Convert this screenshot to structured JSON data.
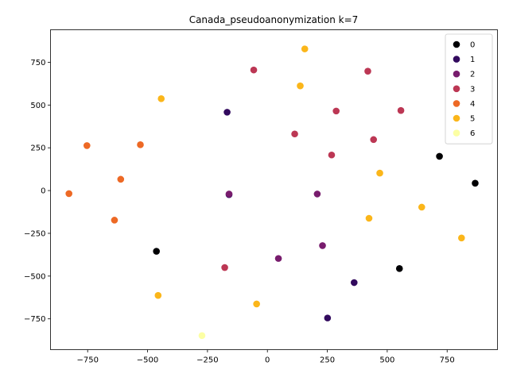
{
  "chart_data": {
    "type": "scatter",
    "title": "Canada_pseudoanonymization k=7",
    "xlabel": "",
    "ylabel": "",
    "xlim": [
      -905,
      960
    ],
    "ylim": [
      -930,
      940
    ],
    "xticks": [
      -750,
      -500,
      -250,
      0,
      250,
      500,
      750
    ],
    "yticks": [
      -750,
      -500,
      -250,
      0,
      250,
      500,
      750
    ],
    "grid": false,
    "legend_position": "top-right",
    "series": [
      {
        "name": "0",
        "color": "#000004",
        "points": [
          [
            718,
            200
          ],
          [
            867,
            43
          ],
          [
            -463,
            -355
          ],
          [
            551,
            -456
          ]
        ]
      },
      {
        "name": "1",
        "color": "#320a5e",
        "points": [
          [
            -168,
            458
          ],
          [
            -160,
            -24
          ],
          [
            362,
            -538
          ],
          [
            251,
            -745
          ]
        ]
      },
      {
        "name": "2",
        "color": "#781c6d",
        "points": [
          [
            208,
            -20
          ],
          [
            -160,
            -20
          ],
          [
            230,
            -322
          ],
          [
            46,
            -397
          ]
        ]
      },
      {
        "name": "3",
        "color": "#bc3754",
        "points": [
          [
            -57,
            705
          ],
          [
            419,
            698
          ],
          [
            287,
            465
          ],
          [
            557,
            468
          ],
          [
            114,
            331
          ],
          [
            443,
            298
          ],
          [
            268,
            208
          ],
          [
            -178,
            -450
          ]
        ]
      },
      {
        "name": "4",
        "color": "#ed6925",
        "points": [
          [
            -753,
            263
          ],
          [
            -530,
            268
          ],
          [
            -612,
            66
          ],
          [
            -828,
            -18
          ],
          [
            -638,
            -173
          ]
        ]
      },
      {
        "name": "5",
        "color": "#fbb61a",
        "points": [
          [
            156,
            828
          ],
          [
            -443,
            537
          ],
          [
            137,
            612
          ],
          [
            469,
            102
          ],
          [
            424,
            -162
          ],
          [
            644,
            -97
          ],
          [
            810,
            -277
          ],
          [
            -456,
            -613
          ],
          [
            -45,
            -663
          ]
        ]
      },
      {
        "name": "6",
        "color": "#fcffa4",
        "points": [
          [
            -273,
            -848
          ]
        ]
      }
    ]
  }
}
